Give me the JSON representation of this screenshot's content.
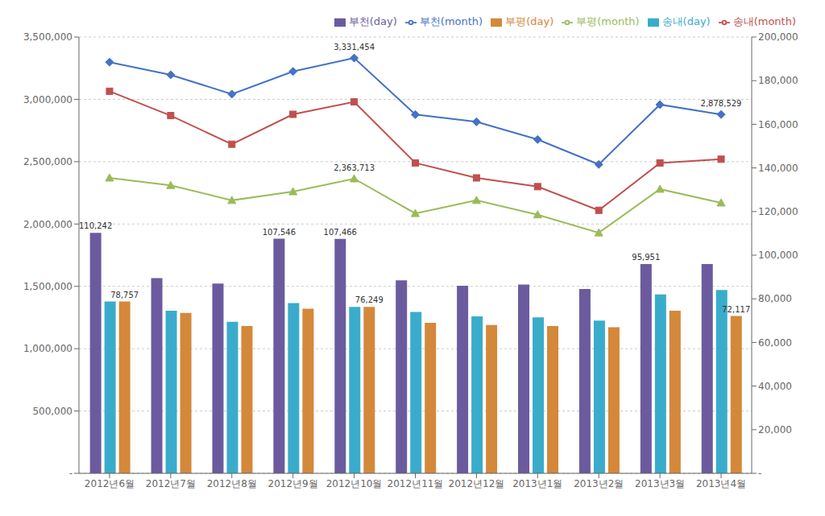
{
  "chart_data": {
    "type": "bar",
    "categories": [
      "2012년6월",
      "2012년7월",
      "2012년8월",
      "2012년9월",
      "2012년10월",
      "2012년11월",
      "2012년12월",
      "2013년1월",
      "2013년2월",
      "2013년3월",
      "2013년4월"
    ],
    "series": [
      {
        "name": "부천(day)",
        "type": "bar",
        "axis": "y2",
        "color": "#6B5B9E",
        "values": [
          110242,
          89500,
          87000,
          107546,
          107466,
          88500,
          86000,
          86500,
          84500,
          95951,
          95951
        ],
        "value_labels": [
          "110,242",
          null,
          null,
          "107,546",
          "107,466",
          null,
          null,
          null,
          null,
          "95,951",
          null
        ]
      },
      {
        "name": "송내(day)",
        "type": "bar",
        "axis": "y2",
        "color": "#3AACCB",
        "values": [
          78757,
          74500,
          69500,
          78000,
          76249,
          74000,
          72000,
          71500,
          70000,
          82000,
          84000
        ]
      },
      {
        "name": "부평(day)",
        "type": "bar",
        "axis": "y2",
        "color": "#D4883A",
        "values": [
          78757,
          73500,
          67500,
          75500,
          76249,
          69000,
          68000,
          67500,
          67000,
          74500,
          72117
        ],
        "value_labels": [
          "78,757",
          null,
          null,
          null,
          "76,249",
          null,
          null,
          null,
          null,
          null,
          "72,117"
        ]
      },
      {
        "name": "부천(month)",
        "type": "line",
        "color": "#4472C4",
        "marker": "diamond",
        "values": [
          3298000,
          3197000,
          3042000,
          3224000,
          3331454,
          2878000,
          2820000,
          2678000,
          2478000,
          2958000,
          2878529
        ],
        "value_labels": [
          null,
          null,
          null,
          null,
          "3,331,454",
          null,
          null,
          null,
          null,
          null,
          "2,878,529"
        ]
      },
      {
        "name": "송내(month)",
        "type": "line",
        "color": "#C0504D",
        "marker": "square",
        "values": [
          3065000,
          2870000,
          2640000,
          2880000,
          2980000,
          2490000,
          2370000,
          2300000,
          2110000,
          2490000,
          2520000
        ]
      },
      {
        "name": "부평(month)",
        "type": "line",
        "color": "#9BBB59",
        "marker": "triangle",
        "values": [
          2370000,
          2310000,
          2190000,
          2260000,
          2363713,
          2085000,
          2190000,
          2075000,
          1930000,
          2280000,
          2170000
        ],
        "value_labels": [
          null,
          null,
          null,
          null,
          "2,363,713",
          null,
          null,
          null,
          null,
          null,
          null
        ]
      }
    ],
    "ylim": [
      0,
      3500000
    ],
    "yticks": [
      {
        "value": 0,
        "label": "-"
      },
      {
        "value": 500000,
        "label": "500,000"
      },
      {
        "value": 1000000,
        "label": "1,000,000"
      },
      {
        "value": 1500000,
        "label": "1,500,000"
      },
      {
        "value": 2000000,
        "label": "2,000,000"
      },
      {
        "value": 2500000,
        "label": "2,500,000"
      },
      {
        "value": 3000000,
        "label": "3,000,000"
      },
      {
        "value": 3500000,
        "label": "3,500,000"
      }
    ],
    "y2lim": [
      0,
      200000
    ],
    "y2ticks": [
      {
        "value": 0,
        "label": "-"
      },
      {
        "value": 20000,
        "label": "20,000"
      },
      {
        "value": 40000,
        "label": "40,000"
      },
      {
        "value": 60000,
        "label": "60,000"
      },
      {
        "value": 80000,
        "label": "80,000"
      },
      {
        "value": 100000,
        "label": "100,000"
      },
      {
        "value": 120000,
        "label": "120,000"
      },
      {
        "value": 140000,
        "label": "140,000"
      },
      {
        "value": 160000,
        "label": "160,000"
      },
      {
        "value": 180000,
        "label": "180,000"
      },
      {
        "value": 200000,
        "label": "200,000"
      }
    ],
    "grid": true,
    "legend": "upper right"
  }
}
